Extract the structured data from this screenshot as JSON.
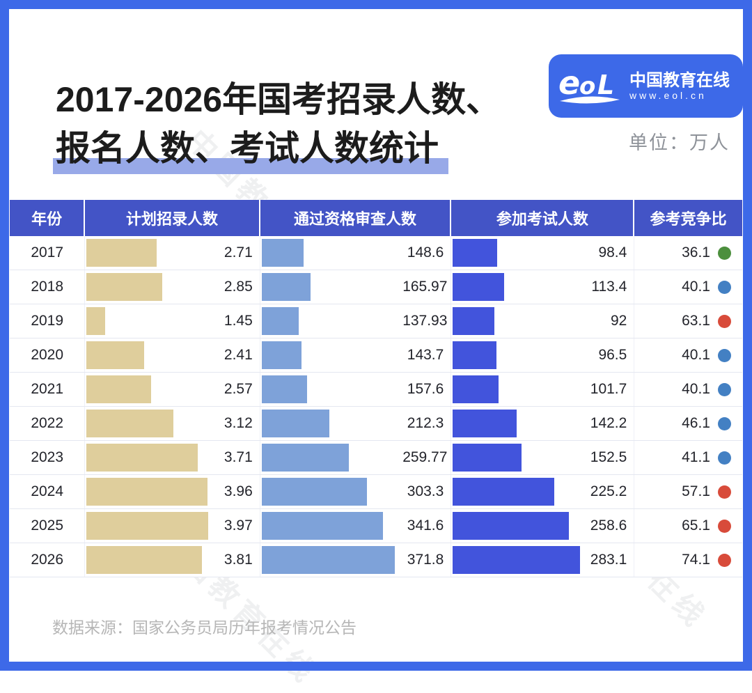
{
  "page": {
    "title_line1": "2017-2026年国考招录人数、",
    "title_line2": "报名人数、考试人数统计",
    "unit_label": "单位：万人",
    "source": "数据来源：国家公务员局历年报考情况公告",
    "watermark_text": "中国教育在线"
  },
  "logo": {
    "glyph": "eol",
    "name": "中国教育在线",
    "url_text": "www.eol.cn"
  },
  "colors": {
    "frame_blue": "#3D69E8",
    "header_bg": "#4354C6",
    "highlight": "#98A9E8",
    "bar_plan": "#DFCE9C",
    "bar_qualified": "#7EA2D9",
    "bar_exam": "#4254DC",
    "dot": {
      "green": "#4C8F3D",
      "blue": "#4380C3",
      "red": "#D84B3A"
    }
  },
  "chart_data": {
    "type": "table",
    "title": "2017-2026年国考招录人数、报名人数、考试人数统计",
    "unit": "万人",
    "columns": [
      "年份",
      "计划招录人数",
      "通过资格审查人数",
      "参加考试人数",
      "参考竞争比"
    ],
    "years": [
      2017,
      2018,
      2019,
      2020,
      2021,
      2022,
      2023,
      2024,
      2025,
      2026
    ],
    "series": [
      {
        "name": "计划招录人数",
        "values": [
          2.71,
          2.85,
          1.45,
          2.41,
          2.57,
          3.12,
          3.71,
          3.96,
          3.97,
          3.81
        ],
        "bar_color": "#DFCE9C",
        "axis_min": 1.0,
        "axis_max": 4.15
      },
      {
        "name": "通过资格审查人数",
        "values": [
          148.6,
          165.97,
          137.93,
          143.7,
          157.6,
          212.3,
          259.77,
          303.3,
          341.6,
          371.8
        ],
        "bar_color": "#7EA2D9",
        "axis_min": 47,
        "axis_max": 390
      },
      {
        "name": "参加考试人数",
        "values": [
          98.4,
          113.4,
          92,
          96.5,
          101.7,
          142.2,
          152.5,
          225.2,
          258.6,
          283.1
        ],
        "bar_color": "#4254DC",
        "axis_min": 0,
        "axis_max": 300
      }
    ],
    "ratio": {
      "name": "参考竞争比",
      "values": [
        36.1,
        40.1,
        63.1,
        40.1,
        40.1,
        46.1,
        41.1,
        57.1,
        65.1,
        74.1
      ],
      "dot_colors": [
        "green",
        "blue",
        "red",
        "blue",
        "blue",
        "blue",
        "blue",
        "red",
        "red",
        "red"
      ]
    },
    "legend_position": "none",
    "grid": false
  }
}
